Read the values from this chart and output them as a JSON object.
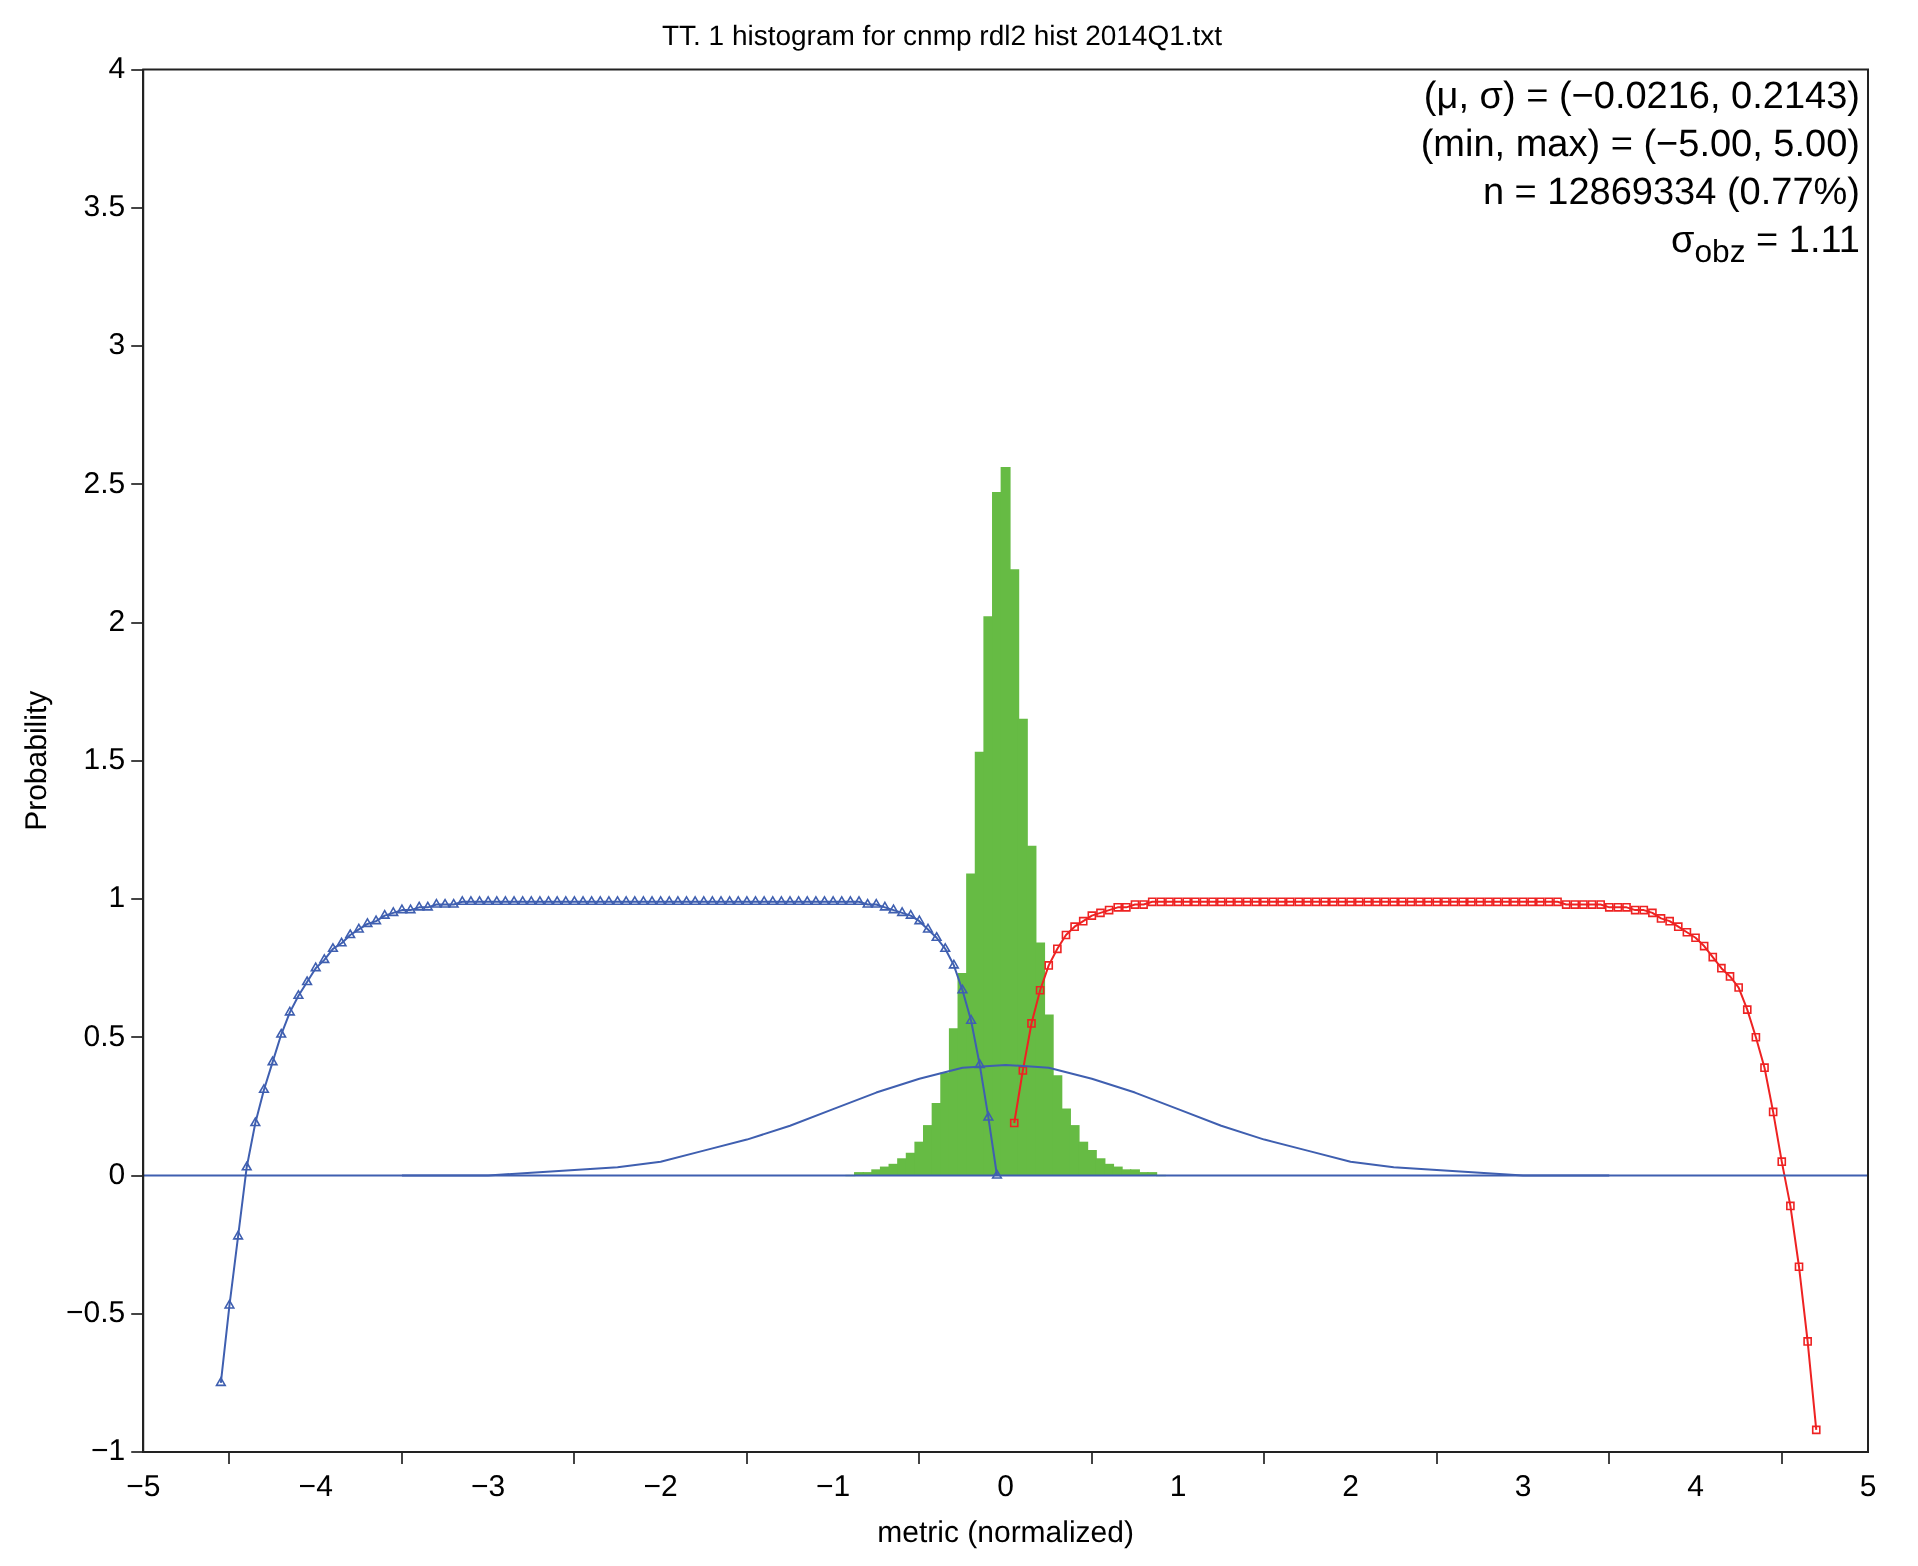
{
  "chart_data": {
    "type": "histogram",
    "title": "TT. 1 histogram for cnmp rdl2 hist 2014Q1.txt",
    "xlabel": "metric (normalized)",
    "ylabel": "Probability",
    "xlim": [
      -5,
      5
    ],
    "xticks": [
      -5,
      -4,
      -3,
      -2,
      -1,
      0,
      1,
      2,
      3,
      4,
      5
    ],
    "ylim": [
      -1,
      4
    ],
    "yticks": [
      -1,
      -0.5,
      0,
      0.5,
      1,
      1.5,
      2,
      2.5,
      3,
      3.5,
      4
    ],
    "grid": false,
    "legend": false,
    "annotations": [
      "(μ, σ) = (−0.0216, 0.2143)",
      "(min, max) = (−5.00, 5.00)",
      "n = 12869334 (0.77%)",
      "σ$_{obz}$ = 1.11"
    ],
    "ref_lines": [
      {
        "axis": "y",
        "value": 0,
        "color": "#3f5fb0"
      }
    ],
    "series": [
      {
        "type": "histogram",
        "color": "#66bb44",
        "bins": [
          -0.925,
          -0.875,
          -0.825,
          -0.775,
          -0.725,
          -0.675,
          -0.625,
          -0.575,
          -0.525,
          -0.475,
          -0.425,
          -0.375,
          -0.325,
          -0.275,
          -0.225,
          -0.175,
          -0.125,
          -0.075,
          -0.025,
          0.025,
          0.075,
          0.125,
          0.175,
          0.225,
          0.275,
          0.325,
          0.375,
          0.425,
          0.475,
          0.525,
          0.575,
          0.625,
          0.675,
          0.725,
          0.775,
          0.825,
          0.875,
          0.925
        ],
        "values": [
          0.0,
          0.01,
          0.01,
          0.02,
          0.03,
          0.04,
          0.06,
          0.08,
          0.12,
          0.18,
          0.26,
          0.37,
          0.53,
          0.73,
          1.09,
          1.53,
          2.02,
          2.47,
          2.56,
          2.19,
          1.65,
          1.19,
          0.84,
          0.58,
          0.36,
          0.24,
          0.18,
          0.12,
          0.09,
          0.06,
          0.04,
          0.03,
          0.02,
          0.02,
          0.01,
          0.01,
          0.0
        ]
      },
      {
        "type": "line",
        "color": "#3f5fb0",
        "marker": "none",
        "x": [
          -3.5,
          -3.25,
          -3,
          -2.75,
          -2.5,
          -2.25,
          -2,
          -1.75,
          -1.5,
          -1.25,
          -1,
          -0.75,
          -0.5,
          -0.25,
          0,
          0.25,
          0.5,
          0.75,
          1,
          1.25,
          1.5,
          1.75,
          2,
          2.25,
          2.5,
          2.75,
          3,
          3.25,
          3.5
        ],
        "values": [
          0,
          0,
          0,
          0.01,
          0.02,
          0.03,
          0.05,
          0.09,
          0.13,
          0.18,
          0.24,
          0.3,
          0.35,
          0.39,
          0.4,
          0.39,
          0.35,
          0.3,
          0.24,
          0.18,
          0.13,
          0.09,
          0.05,
          0.03,
          0.02,
          0.01,
          0,
          0,
          0
        ]
      },
      {
        "type": "line",
        "color": "#3f5fb0",
        "marker": "triangle",
        "x": [
          -4.55,
          -4.5,
          -4.45,
          -4.4,
          -4.35,
          -4.3,
          -4.25,
          -4.2,
          -4.15,
          -4.1,
          -4.05,
          -4,
          -3.95,
          -3.9,
          -3.85,
          -3.8,
          -3.75,
          -3.7,
          -3.65,
          -3.6,
          -3.55,
          -3.5,
          -3.45,
          -3.4,
          -3.35,
          -3.3,
          -3.25,
          -3.2,
          -3.15,
          -3.1,
          -3.05,
          -3,
          -2.95,
          -2.9,
          -2.85,
          -2.8,
          -2.75,
          -2.7,
          -2.65,
          -2.6,
          -2.55,
          -2.5,
          -2.45,
          -2.4,
          -2.35,
          -2.3,
          -2.25,
          -2.2,
          -2.15,
          -2.1,
          -2.05,
          -2,
          -1.95,
          -1.9,
          -1.85,
          -1.8,
          -1.75,
          -1.7,
          -1.65,
          -1.6,
          -1.55,
          -1.5,
          -1.45,
          -1.4,
          -1.35,
          -1.3,
          -1.25,
          -1.2,
          -1.15,
          -1.1,
          -1.05,
          -1,
          -0.95,
          -0.9,
          -0.85,
          -0.8,
          -0.75,
          -0.7,
          -0.65,
          -0.6,
          -0.55,
          -0.5,
          -0.45,
          -0.4,
          -0.35,
          -0.3,
          -0.25,
          -0.2,
          -0.15,
          -0.1,
          -0.05
        ],
        "values": [
          -0.75,
          -0.47,
          -0.22,
          0.03,
          0.19,
          0.31,
          0.41,
          0.51,
          0.59,
          0.65,
          0.7,
          0.75,
          0.78,
          0.82,
          0.84,
          0.87,
          0.89,
          0.91,
          0.92,
          0.94,
          0.95,
          0.96,
          0.96,
          0.97,
          0.97,
          0.98,
          0.98,
          0.98,
          0.99,
          0.99,
          0.99,
          0.99,
          0.99,
          0.99,
          0.99,
          0.99,
          0.99,
          0.99,
          0.99,
          0.99,
          0.99,
          0.99,
          0.99,
          0.99,
          0.99,
          0.99,
          0.99,
          0.99,
          0.99,
          0.99,
          0.99,
          0.99,
          0.99,
          0.99,
          0.99,
          0.99,
          0.99,
          0.99,
          0.99,
          0.99,
          0.99,
          0.99,
          0.99,
          0.99,
          0.99,
          0.99,
          0.99,
          0.99,
          0.99,
          0.99,
          0.99,
          0.99,
          0.99,
          0.99,
          0.99,
          0.98,
          0.98,
          0.97,
          0.96,
          0.95,
          0.94,
          0.92,
          0.89,
          0.86,
          0.82,
          0.76,
          0.67,
          0.56,
          0.4,
          0.21,
          0
        ]
      },
      {
        "type": "line",
        "color": "#ee2222",
        "marker": "square",
        "x": [
          0.05,
          0.1,
          0.15,
          0.2,
          0.25,
          0.3,
          0.35,
          0.4,
          0.45,
          0.5,
          0.55,
          0.6,
          0.65,
          0.7,
          0.75,
          0.8,
          0.85,
          0.9,
          0.95,
          1,
          1.05,
          1.1,
          1.15,
          1.2,
          1.25,
          1.3,
          1.35,
          1.4,
          1.45,
          1.5,
          1.55,
          1.6,
          1.65,
          1.7,
          1.75,
          1.8,
          1.85,
          1.9,
          1.95,
          2,
          2.05,
          2.1,
          2.15,
          2.2,
          2.25,
          2.3,
          2.35,
          2.4,
          2.45,
          2.5,
          2.55,
          2.6,
          2.65,
          2.7,
          2.75,
          2.8,
          2.85,
          2.9,
          2.95,
          3,
          3.05,
          3.1,
          3.15,
          3.2,
          3.25,
          3.3,
          3.35,
          3.4,
          3.45,
          3.5,
          3.55,
          3.6,
          3.65,
          3.7,
          3.75,
          3.8,
          3.85,
          3.9,
          3.95,
          4,
          4.05,
          4.1,
          4.15,
          4.2,
          4.25,
          4.3,
          4.35,
          4.4,
          4.45,
          4.5,
          4.55,
          4.6,
          4.65,
          4.7
        ],
        "values": [
          0.19,
          0.38,
          0.55,
          0.67,
          0.76,
          0.82,
          0.87,
          0.9,
          0.92,
          0.94,
          0.95,
          0.96,
          0.97,
          0.97,
          0.98,
          0.98,
          0.99,
          0.99,
          0.99,
          0.99,
          0.99,
          0.99,
          0.99,
          0.99,
          0.99,
          0.99,
          0.99,
          0.99,
          0.99,
          0.99,
          0.99,
          0.99,
          0.99,
          0.99,
          0.99,
          0.99,
          0.99,
          0.99,
          0.99,
          0.99,
          0.99,
          0.99,
          0.99,
          0.99,
          0.99,
          0.99,
          0.99,
          0.99,
          0.99,
          0.99,
          0.99,
          0.99,
          0.99,
          0.99,
          0.99,
          0.99,
          0.99,
          0.99,
          0.99,
          0.99,
          0.99,
          0.99,
          0.99,
          0.99,
          0.98,
          0.98,
          0.98,
          0.98,
          0.98,
          0.97,
          0.97,
          0.97,
          0.96,
          0.96,
          0.95,
          0.93,
          0.92,
          0.9,
          0.88,
          0.86,
          0.83,
          0.79,
          0.75,
          0.72,
          0.68,
          0.6,
          0.5,
          0.39,
          0.23,
          0.05,
          -0.11,
          -0.33,
          -0.6,
          -0.92
        ]
      }
    ]
  }
}
